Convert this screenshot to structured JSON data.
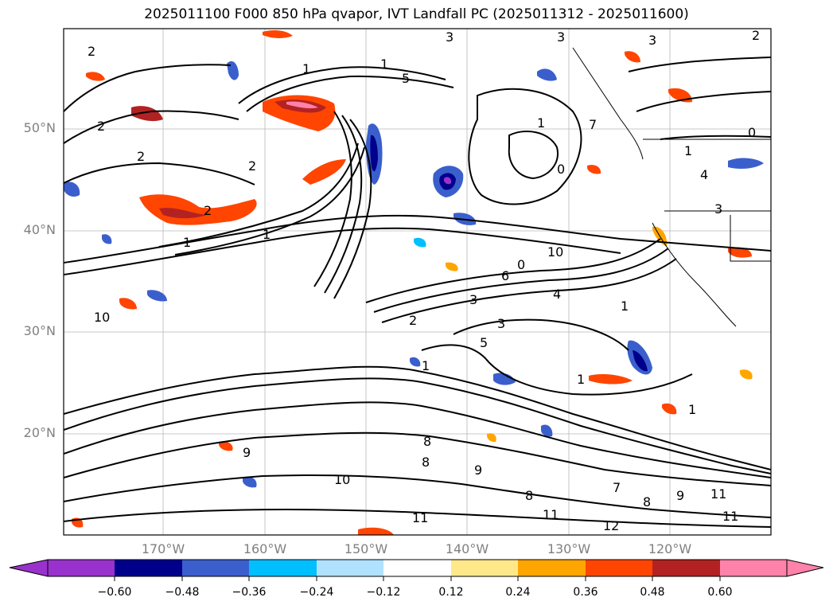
{
  "title": "2025011100 F000 850 hPa qvapor, IVT Landfall PC (2025011312 - 2025011600)",
  "map": {
    "lat_ticks": [
      "50°N",
      "40°N",
      "30°N",
      "20°N"
    ],
    "lon_ticks": [
      "170°W",
      "160°W",
      "150°W",
      "140°W",
      "130°W",
      "120°W"
    ],
    "contour_labels": [
      "3",
      "3",
      "3",
      "2",
      "2",
      "1",
      "1",
      "2",
      "2",
      "2",
      "5",
      "1",
      "0",
      "7",
      "1",
      "0",
      "4",
      "1",
      "2",
      "1",
      "10",
      "1",
      "3",
      "3",
      "4",
      "1",
      "6",
      "3",
      "1",
      "2",
      "5",
      "0",
      "1",
      "10",
      "8",
      "9",
      "8",
      "9",
      "8",
      "10",
      "11",
      "11",
      "11",
      "12",
      "9",
      "7",
      "11",
      "8"
    ]
  },
  "colorbar": {
    "ticks": [
      "−0.60",
      "−0.48",
      "−0.36",
      "−0.24",
      "−0.12",
      "0.12",
      "0.24",
      "0.36",
      "0.48",
      "0.60"
    ],
    "colors": [
      "#9932cc",
      "#00008b",
      "#3a5fcd",
      "#00bfff",
      "#b0e2ff",
      "#ffffff",
      "#ffe88a",
      "#ffa500",
      "#ff4500",
      "#b22222",
      "#ff82ab",
      "#ff82ab"
    ]
  }
}
